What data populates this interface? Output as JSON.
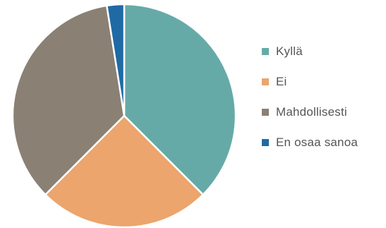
{
  "chart_data": {
    "type": "pie",
    "categories": [
      "Kyllä",
      "Ei",
      "Mahdollisesti",
      "En osaa sanoa"
    ],
    "values": [
      37.5,
      25.0,
      35.0,
      2.5
    ],
    "colors": [
      "#66aaa8",
      "#eba56d",
      "#8a8074",
      "#1f6aa5"
    ],
    "title": "",
    "legend_position": "right",
    "start_angle": "top (12 o'clock)",
    "direction": "clockwise"
  },
  "legend": {
    "items": [
      {
        "label": "Kyllä",
        "color": "#66aaa8"
      },
      {
        "label": "Ei",
        "color": "#eba56d"
      },
      {
        "label": "Mahdollisesti",
        "color": "#8a8074"
      },
      {
        "label": "En osaa sanoa",
        "color": "#1f6aa5"
      }
    ]
  }
}
